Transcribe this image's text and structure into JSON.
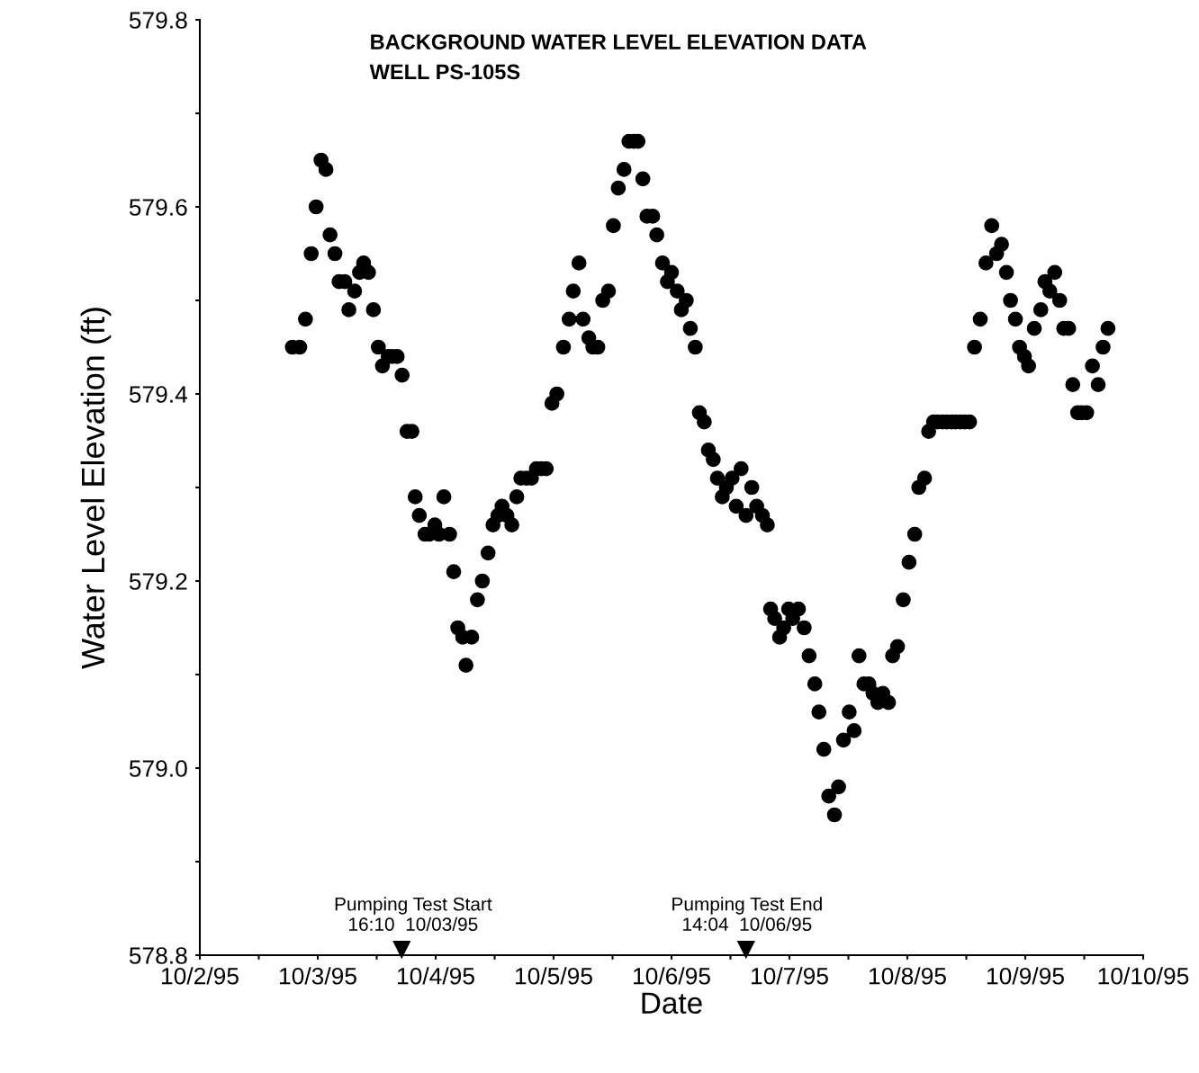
{
  "chart_data": {
    "type": "scatter",
    "title": "BACKGROUND WATER LEVEL ELEVATION DATA",
    "subtitle": "WELL PS-105S",
    "xlabel": "Date",
    "ylabel": "Water Level Elevation (ft)",
    "marker": "circle",
    "grid": false,
    "x": [
      "1995-10-02T18:50",
      "1995-10-02T20:20",
      "1995-10-02T21:30",
      "1995-10-02T22:40",
      "1995-10-02T23:40",
      "1995-10-03T00:40",
      "1995-10-03T01:40",
      "1995-10-03T02:30",
      "1995-10-03T03:30",
      "1995-10-03T04:20",
      "1995-10-03T05:30",
      "1995-10-03T06:20",
      "1995-10-03T07:30",
      "1995-10-03T08:30",
      "1995-10-03T09:20",
      "1995-10-03T10:20",
      "1995-10-03T11:20",
      "1995-10-03T12:20",
      "1995-10-03T13:10",
      "1995-10-03T14:20",
      "1995-10-03T15:10",
      "1995-10-03T16:10",
      "1995-10-03T17:10",
      "1995-10-03T18:10",
      "1995-10-03T19:10",
      "1995-10-03T19:50",
      "1995-10-03T20:40",
      "1995-10-03T21:50",
      "1995-10-03T22:40",
      "1995-10-03T23:50",
      "1995-10-04T00:40",
      "1995-10-04T01:40",
      "1995-10-04T02:50",
      "1995-10-04T03:40",
      "1995-10-04T04:30",
      "1995-10-04T05:30",
      "1995-10-04T06:10",
      "1995-10-04T07:20",
      "1995-10-04T08:30",
      "1995-10-04T09:30",
      "1995-10-04T10:40",
      "1995-10-04T11:40",
      "1995-10-04T12:40",
      "1995-10-04T13:30",
      "1995-10-04T14:30",
      "1995-10-04T15:30",
      "1995-10-04T16:30",
      "1995-10-04T17:20",
      "1995-10-04T18:30",
      "1995-10-04T19:30",
      "1995-10-04T20:30",
      "1995-10-04T21:30",
      "1995-10-04T22:30",
      "1995-10-04T23:40",
      "1995-10-05T00:40",
      "1995-10-05T02:00",
      "1995-10-05T03:10",
      "1995-10-05T04:00",
      "1995-10-05T05:10",
      "1995-10-05T06:00",
      "1995-10-05T07:10",
      "1995-10-05T08:00",
      "1995-10-05T09:00",
      "1995-10-05T10:00",
      "1995-10-05T11:10",
      "1995-10-05T12:10",
      "1995-10-05T13:10",
      "1995-10-05T14:20",
      "1995-10-05T15:20",
      "1995-10-05T16:20",
      "1995-10-05T17:10",
      "1995-10-05T18:10",
      "1995-10-05T19:00",
      "1995-10-05T20:10",
      "1995-10-05T21:00",
      "1995-10-05T22:10",
      "1995-10-05T23:10",
      "1995-10-06T00:00",
      "1995-10-06T01:10",
      "1995-10-06T02:00",
      "1995-10-06T03:00",
      "1995-10-06T03:50",
      "1995-10-06T04:50",
      "1995-10-06T05:40",
      "1995-10-06T06:40",
      "1995-10-06T07:30",
      "1995-10-06T08:30",
      "1995-10-06T09:20",
      "1995-10-06T10:20",
      "1995-10-06T11:10",
      "1995-10-06T12:20",
      "1995-10-06T13:10",
      "1995-10-06T14:10",
      "1995-10-06T15:10",
      "1995-10-06T16:20",
      "1995-10-06T17:20",
      "1995-10-06T18:30",
      "1995-10-06T19:30",
      "1995-10-06T20:10",
      "1995-10-06T21:00",
      "1995-10-06T22:00",
      "1995-10-06T22:50",
      "1995-10-06T23:50",
      "1995-10-07T00:40",
      "1995-10-07T01:50",
      "1995-10-07T03:00",
      "1995-10-07T04:00",
      "1995-10-07T05:10",
      "1995-10-07T06:00",
      "1995-10-07T07:00",
      "1995-10-07T08:00",
      "1995-10-07T09:10",
      "1995-10-07T10:00",
      "1995-10-07T11:00",
      "1995-10-07T12:10",
      "1995-10-07T13:10",
      "1995-10-07T14:10",
      "1995-10-07T15:10",
      "1995-10-07T16:10",
      "1995-10-07T17:00",
      "1995-10-07T18:00",
      "1995-10-07T19:00",
      "1995-10-07T20:10",
      "1995-10-07T21:00",
      "1995-10-07T22:00",
      "1995-10-07T23:10",
      "1995-10-08T00:20",
      "1995-10-08T01:30",
      "1995-10-08T02:20",
      "1995-10-08T03:30",
      "1995-10-08T04:20",
      "1995-10-08T05:20",
      "1995-10-08T06:10",
      "1995-10-08T07:10",
      "1995-10-08T08:00",
      "1995-10-08T09:00",
      "1995-10-08T09:50",
      "1995-10-08T10:50",
      "1995-10-08T11:40",
      "1995-10-08T12:40",
      "1995-10-08T13:40",
      "1995-10-08T14:50",
      "1995-10-08T16:00",
      "1995-10-08T17:10",
      "1995-10-08T18:10",
      "1995-10-08T19:10",
      "1995-10-08T20:10",
      "1995-10-08T21:00",
      "1995-10-08T22:00",
      "1995-10-08T22:50",
      "1995-10-08T23:50",
      "1995-10-09T00:40",
      "1995-10-09T01:50",
      "1995-10-09T03:10",
      "1995-10-09T04:00",
      "1995-10-09T05:00",
      "1995-10-09T06:00",
      "1995-10-09T07:00",
      "1995-10-09T07:50",
      "1995-10-09T08:50",
      "1995-10-09T09:40",
      "1995-10-09T10:40",
      "1995-10-09T11:30",
      "1995-10-09T12:30",
      "1995-10-09T13:40",
      "1995-10-09T14:50",
      "1995-10-09T15:50",
      "1995-10-09T16:50"
    ],
    "series": [
      {
        "color": "#000000",
        "values": [
          579.45,
          579.45,
          579.48,
          579.55,
          579.6,
          579.65,
          579.64,
          579.57,
          579.55,
          579.52,
          579.52,
          579.49,
          579.51,
          579.53,
          579.54,
          579.53,
          579.49,
          579.45,
          579.43,
          579.44,
          579.44,
          579.44,
          579.42,
          579.36,
          579.36,
          579.29,
          579.27,
          579.25,
          579.25,
          579.26,
          579.25,
          579.29,
          579.25,
          579.21,
          579.15,
          579.14,
          579.11,
          579.14,
          579.18,
          579.2,
          579.23,
          579.26,
          579.27,
          579.28,
          579.27,
          579.26,
          579.29,
          579.31,
          579.31,
          579.31,
          579.32,
          579.32,
          579.32,
          579.39,
          579.4,
          579.45,
          579.48,
          579.51,
          579.54,
          579.48,
          579.46,
          579.45,
          579.45,
          579.5,
          579.51,
          579.58,
          579.62,
          579.64,
          579.67,
          579.67,
          579.67,
          579.63,
          579.59,
          579.59,
          579.57,
          579.54,
          579.52,
          579.53,
          579.51,
          579.49,
          579.5,
          579.47,
          579.45,
          579.38,
          579.37,
          579.34,
          579.33,
          579.31,
          579.29,
          579.3,
          579.31,
          579.28,
          579.32,
          579.27,
          579.3,
          579.28,
          579.27,
          579.26,
          579.17,
          579.16,
          579.14,
          579.15,
          579.17,
          579.16,
          579.17,
          579.15,
          579.12,
          579.09,
          579.06,
          579.02,
          578.97,
          578.95,
          578.98,
          579.03,
          579.06,
          579.04,
          579.12,
          579.09,
          579.09,
          579.08,
          579.07,
          579.08,
          579.07,
          579.12,
          579.13,
          579.18,
          579.22,
          579.25,
          579.3,
          579.31,
          579.36,
          579.37,
          579.37,
          579.37,
          579.37,
          579.37,
          579.37,
          579.37,
          579.37,
          579.37,
          579.45,
          579.48,
          579.54,
          579.58,
          579.55,
          579.56,
          579.53,
          579.5,
          579.48,
          579.45,
          579.44,
          579.43,
          579.47,
          579.49,
          579.52,
          579.51,
          579.53,
          579.5,
          579.47,
          579.47,
          579.41,
          579.38,
          579.38,
          579.38,
          579.43,
          579.41,
          579.45,
          579.47
        ]
      }
    ],
    "xlim": [
      "1995-10-02",
      "1995-10-10"
    ],
    "xticks": [
      {
        "value": "1995-10-02",
        "label": "10/2/95"
      },
      {
        "value": "1995-10-02T12:00",
        "label": null
      },
      {
        "value": "1995-10-03",
        "label": "10/3/95"
      },
      {
        "value": "1995-10-03T12:00",
        "label": null
      },
      {
        "value": "1995-10-04",
        "label": "10/4/95"
      },
      {
        "value": "1995-10-04T12:00",
        "label": null
      },
      {
        "value": "1995-10-05",
        "label": "10/5/95"
      },
      {
        "value": "1995-10-05T12:00",
        "label": null
      },
      {
        "value": "1995-10-06",
        "label": "10/6/95"
      },
      {
        "value": "1995-10-06T12:00",
        "label": null
      },
      {
        "value": "1995-10-07",
        "label": "10/7/95"
      },
      {
        "value": "1995-10-07T12:00",
        "label": null
      },
      {
        "value": "1995-10-08",
        "label": "10/8/95"
      },
      {
        "value": "1995-10-08T12:00",
        "label": null
      },
      {
        "value": "1995-10-09",
        "label": "10/9/95"
      },
      {
        "value": "1995-10-09T12:00",
        "label": null
      },
      {
        "value": "1995-10-10",
        "label": "10/10/95"
      }
    ],
    "ylim": [
      578.8,
      579.8
    ],
    "yticks": [
      {
        "value": 578.8,
        "label": "578.8"
      },
      {
        "value": 578.9,
        "label": null
      },
      {
        "value": 579.0,
        "label": "579.0"
      },
      {
        "value": 579.1,
        "label": null
      },
      {
        "value": 579.2,
        "label": "579.2"
      },
      {
        "value": 579.3,
        "label": null
      },
      {
        "value": 579.4,
        "label": "579.4"
      },
      {
        "value": 579.5,
        "label": null
      },
      {
        "value": 579.6,
        "label": "579.6"
      },
      {
        "value": 579.7,
        "label": null
      },
      {
        "value": 579.8,
        "label": "579.8"
      }
    ],
    "annotations": [
      "Pumping Test Start\n16:10  10/03/95",
      "Pumping Test End\n14:04  10/06/95"
    ]
  }
}
